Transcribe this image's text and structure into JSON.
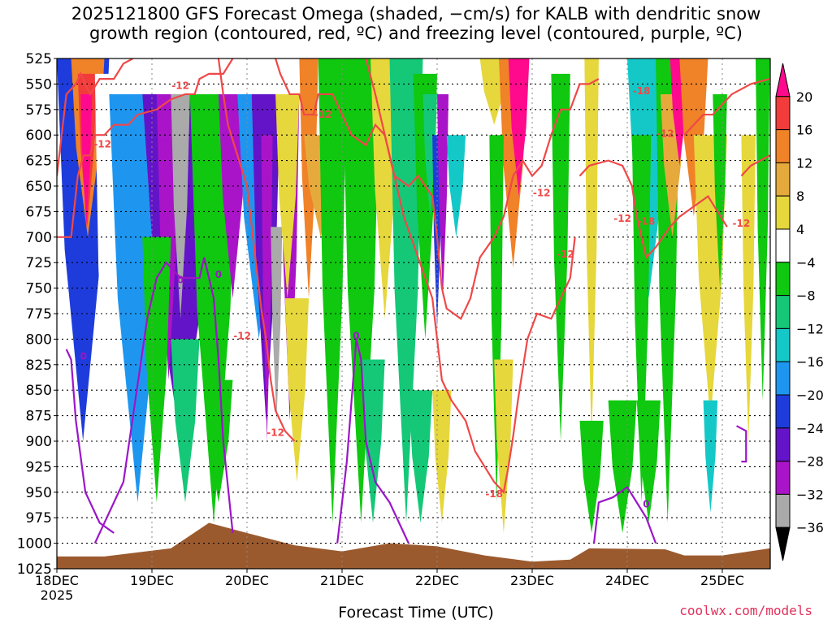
{
  "chart_data": {
    "type": "heatmap",
    "title_line1": "2025121800 GFS Forecast Omega (shaded, −cm/s) for KALB with dendritic snow",
    "title_line2": "growth region (contoured, red, ºC) and freezing level (contoured, purple, ºC)",
    "xlabel": "Forecast Time (UTC)",
    "year_label": "2025",
    "x_ticks": [
      "18DEC",
      "19DEC",
      "20DEC",
      "21DEC",
      "22DEC",
      "23DEC",
      "24DEC",
      "25DEC"
    ],
    "y_ticks": [
      525,
      550,
      575,
      600,
      625,
      650,
      675,
      700,
      725,
      750,
      775,
      800,
      825,
      850,
      875,
      900,
      925,
      950,
      975,
      1000,
      1025
    ],
    "y_range_hpa": [
      525,
      1025
    ],
    "x_range_days": [
      0,
      7.5
    ],
    "colorbar": {
      "labels": [
        "20",
        "16",
        "12",
        "8",
        "4",
        "−4",
        "−8",
        "−12",
        "−16",
        "−20",
        "−24",
        "−28",
        "−32",
        "−36"
      ],
      "colors": [
        "#ff0a8c",
        "#f23c3c",
        "#f08228",
        "#e6aa3c",
        "#e6d73c",
        "#ffffff",
        "#0fc80f",
        "#14c878",
        "#14c8c8",
        "#1e96f0",
        "#1e3cdc",
        "#6414c8",
        "#aa14c8",
        "#aaaaaa",
        "#000000"
      ]
    },
    "contours": {
      "dgz_labels": [
        "-12",
        "-12",
        "-12",
        "-12",
        "-18",
        "-12",
        "-12",
        "-12",
        "-12",
        "-18",
        "-12",
        "-18",
        "-12"
      ],
      "freezing_labels": [
        "0",
        "0",
        "0",
        "0",
        "0"
      ]
    },
    "credit": "coolwx.com/models"
  }
}
